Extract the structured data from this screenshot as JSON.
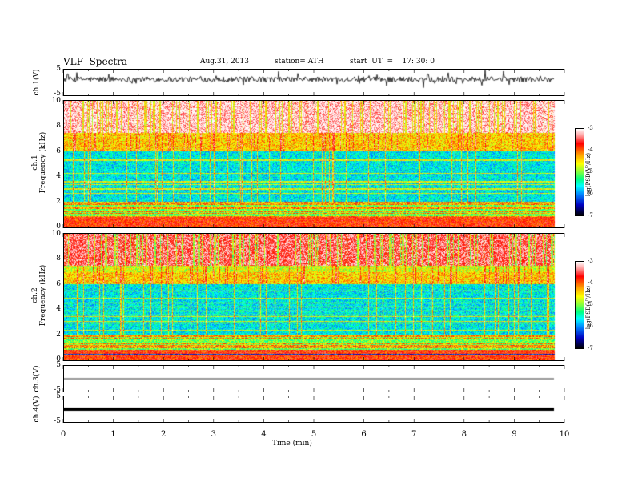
{
  "header": {
    "title": "VLF  Spectra",
    "date": "Aug.31, 2013",
    "station": "station= ATH",
    "start": "start  UT  =    17: 30: 0"
  },
  "chart_data": [
    {
      "type": "line",
      "panel": "ch1-waveform",
      "ylabel": "ch.1(V)",
      "yticks": [
        "5",
        "-5"
      ],
      "ylim": [
        -5,
        5
      ],
      "description_values": {
        "baseline": 1.2,
        "noise_amplitude": 1.5
      }
    },
    {
      "type": "heatmap",
      "panel": "ch1-spectrogram",
      "ylabel_top": "ch.1",
      "ylabel": "Frequency  (kHz)",
      "yticks": [
        "10",
        "8",
        "6",
        "4",
        "2",
        "0"
      ],
      "ylim": [
        0,
        10
      ],
      "colorbar": {
        "label": "log(PSD(V²/Hz)",
        "ticks": [
          "-3",
          "-4",
          "-5",
          "-6",
          "-7"
        ],
        "range": [
          -7,
          -3
        ]
      }
    },
    {
      "type": "heatmap",
      "panel": "ch2-spectrogram",
      "ylabel_top": "ch.2",
      "ylabel": "Frequency  (kHz)",
      "yticks": [
        "10",
        "8",
        "6",
        "4",
        "2",
        "0"
      ],
      "ylim": [
        0,
        10
      ],
      "colorbar": {
        "label": "log(PSD(V²/Hz)",
        "ticks": [
          "-3",
          "-4",
          "-5",
          "-6",
          "-7"
        ],
        "range": [
          -7,
          -3
        ]
      }
    },
    {
      "type": "line",
      "panel": "ch3-waveform",
      "ylabel": "ch.3(V)",
      "yticks": [
        "5",
        "-5"
      ],
      "ylim": [
        -5,
        5
      ],
      "description_values": {
        "baseline": 0
      }
    },
    {
      "type": "line",
      "panel": "ch4-waveform",
      "ylabel": "ch.4(V)",
      "yticks": [
        "5",
        "-5"
      ],
      "ylim": [
        -5,
        5
      ],
      "description_values": {
        "baseline": 0
      }
    }
  ],
  "xaxis": {
    "label": "Time  (min)",
    "ticks": [
      "0",
      "1",
      "2",
      "3",
      "4",
      "5",
      "6",
      "7",
      "8",
      "9",
      "10"
    ],
    "xlim": [
      0,
      10
    ],
    "data_end": 9.8
  }
}
